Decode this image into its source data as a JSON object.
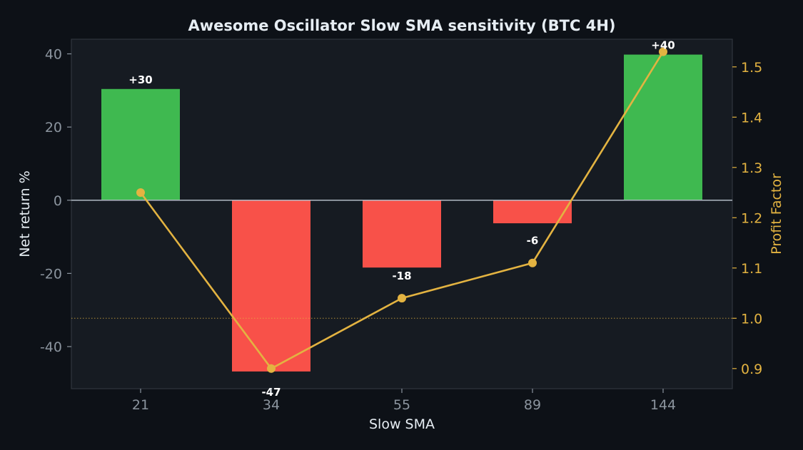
{
  "chart_data": {
    "type": "bar",
    "title": "Awesome Oscillator Slow SMA sensitivity (BTC 4H)",
    "xlabel": "Slow SMA",
    "ylabel": "Net return %",
    "y2label": "Profit Factor",
    "categories": [
      "21",
      "34",
      "55",
      "89",
      "144"
    ],
    "series": [
      {
        "values": [
          30.4,
          -46.8,
          -18.4,
          -6.3,
          39.8
        ],
        "bar_labels": [
          "+30",
          "-47",
          "-18",
          "-6",
          "+40"
        ]
      },
      {
        "type": "line",
        "axis": "right",
        "values": [
          1.25,
          0.9,
          1.04,
          1.11,
          1.53
        ]
      }
    ],
    "ylim": [
      -51.5,
      44
    ],
    "y2lim": [
      0.86,
      1.555
    ],
    "yticks": [
      40,
      20,
      0,
      -20,
      -40
    ],
    "yticklabels": [
      "40",
      "20",
      "0",
      "-20",
      "-40"
    ],
    "y2ticks": [
      1.5,
      1.4,
      1.3,
      1.2,
      1.1,
      1.0,
      0.9
    ],
    "y2ticklabels": [
      "1.5",
      "1.4",
      "1.3",
      "1.2",
      "1.1",
      "1.0",
      "0.9"
    ],
    "reference_line": 1.0,
    "grid": false,
    "colors": {
      "positive_bar": "#3fb950",
      "negative_bar": "#f85149",
      "line": "#e3b341",
      "right_axis": "#e3b341",
      "left_axis": "#8b949e",
      "background": "#0d1117",
      "plot_background": "#161b22",
      "text": "#e6edf3"
    }
  }
}
